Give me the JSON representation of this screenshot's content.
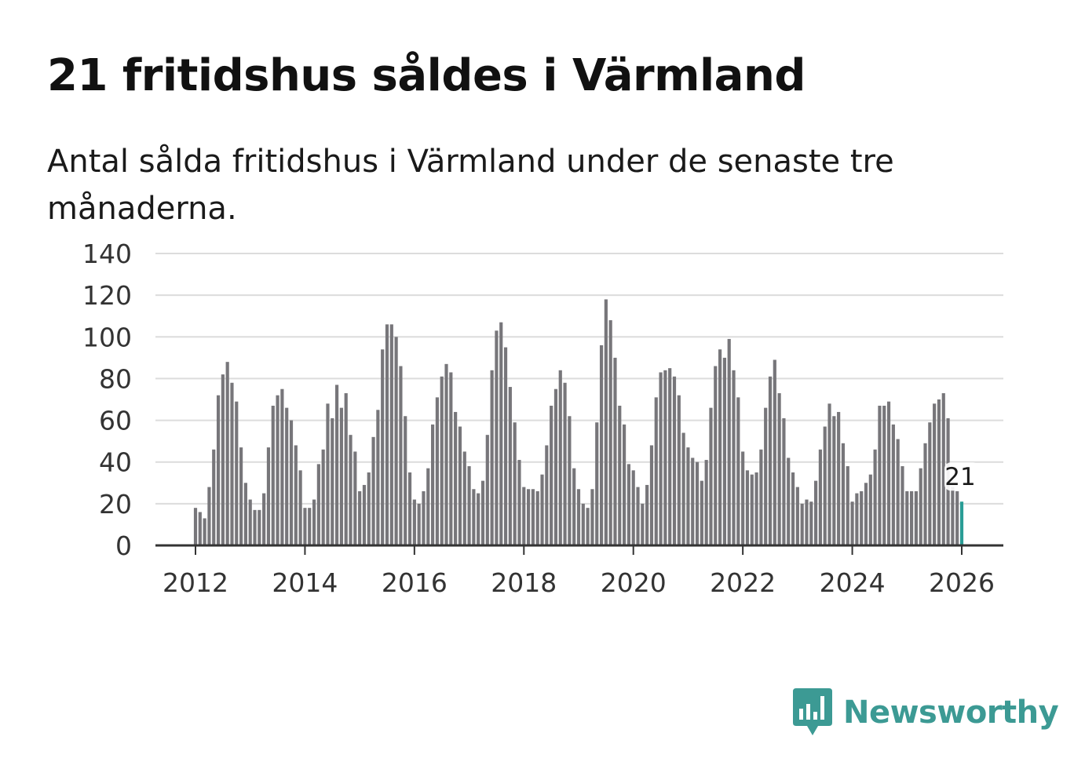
{
  "title": "21 fritidshus såldes i Värmland",
  "subtitle": "Antal sålda fritidshus i Värmland under de senaste tre månaderna.",
  "brand": {
    "name": "Newsworthy",
    "color": "#3c9a94",
    "icon": "bar-chart-speech-bubble-icon"
  },
  "colors": {
    "bar": "#77767a",
    "highlight": "#2a9d96",
    "grid": "#dcdcdc",
    "axis": "#333333"
  },
  "chart_data": {
    "type": "bar",
    "start_month": "2012-01",
    "end_month": "2026-01",
    "frequency": "monthly",
    "values": [
      18,
      16,
      13,
      28,
      46,
      72,
      82,
      88,
      78,
      69,
      47,
      30,
      22,
      17,
      17,
      25,
      47,
      67,
      72,
      75,
      66,
      60,
      48,
      36,
      18,
      18,
      22,
      39,
      46,
      68,
      61,
      77,
      66,
      73,
      53,
      45,
      26,
      29,
      35,
      52,
      65,
      94,
      106,
      106,
      100,
      86,
      62,
      35,
      22,
      20,
      26,
      37,
      58,
      71,
      81,
      87,
      83,
      64,
      57,
      45,
      38,
      27,
      25,
      31,
      53,
      84,
      103,
      107,
      95,
      76,
      59,
      41,
      28,
      27,
      27,
      26,
      34,
      48,
      67,
      75,
      84,
      78,
      62,
      37,
      27,
      20,
      18,
      27,
      59,
      96,
      118,
      108,
      90,
      67,
      58,
      39,
      36,
      28,
      20,
      29,
      48,
      71,
      83,
      84,
      85,
      81,
      72,
      54,
      47,
      42,
      40,
      31,
      41,
      66,
      86,
      94,
      90,
      99,
      84,
      71,
      45,
      36,
      34,
      35,
      46,
      66,
      81,
      89,
      73,
      61,
      42,
      35,
      28,
      20,
      22,
      21,
      31,
      46,
      57,
      68,
      62,
      64,
      49,
      38,
      21,
      25,
      26,
      30,
      34,
      46,
      67,
      67,
      69,
      58,
      51,
      38,
      26,
      26,
      26,
      37,
      49,
      59,
      68,
      70,
      73,
      61,
      28,
      26,
      21
    ],
    "highlight_last": true,
    "data_label": "21",
    "ylim": [
      0,
      140
    ],
    "yticks": [
      0,
      20,
      40,
      60,
      80,
      100,
      120,
      140
    ],
    "xticks": [
      "2012",
      "2014",
      "2016",
      "2018",
      "2020",
      "2022",
      "2024",
      "2026"
    ],
    "grid": true,
    "legend": "none"
  }
}
